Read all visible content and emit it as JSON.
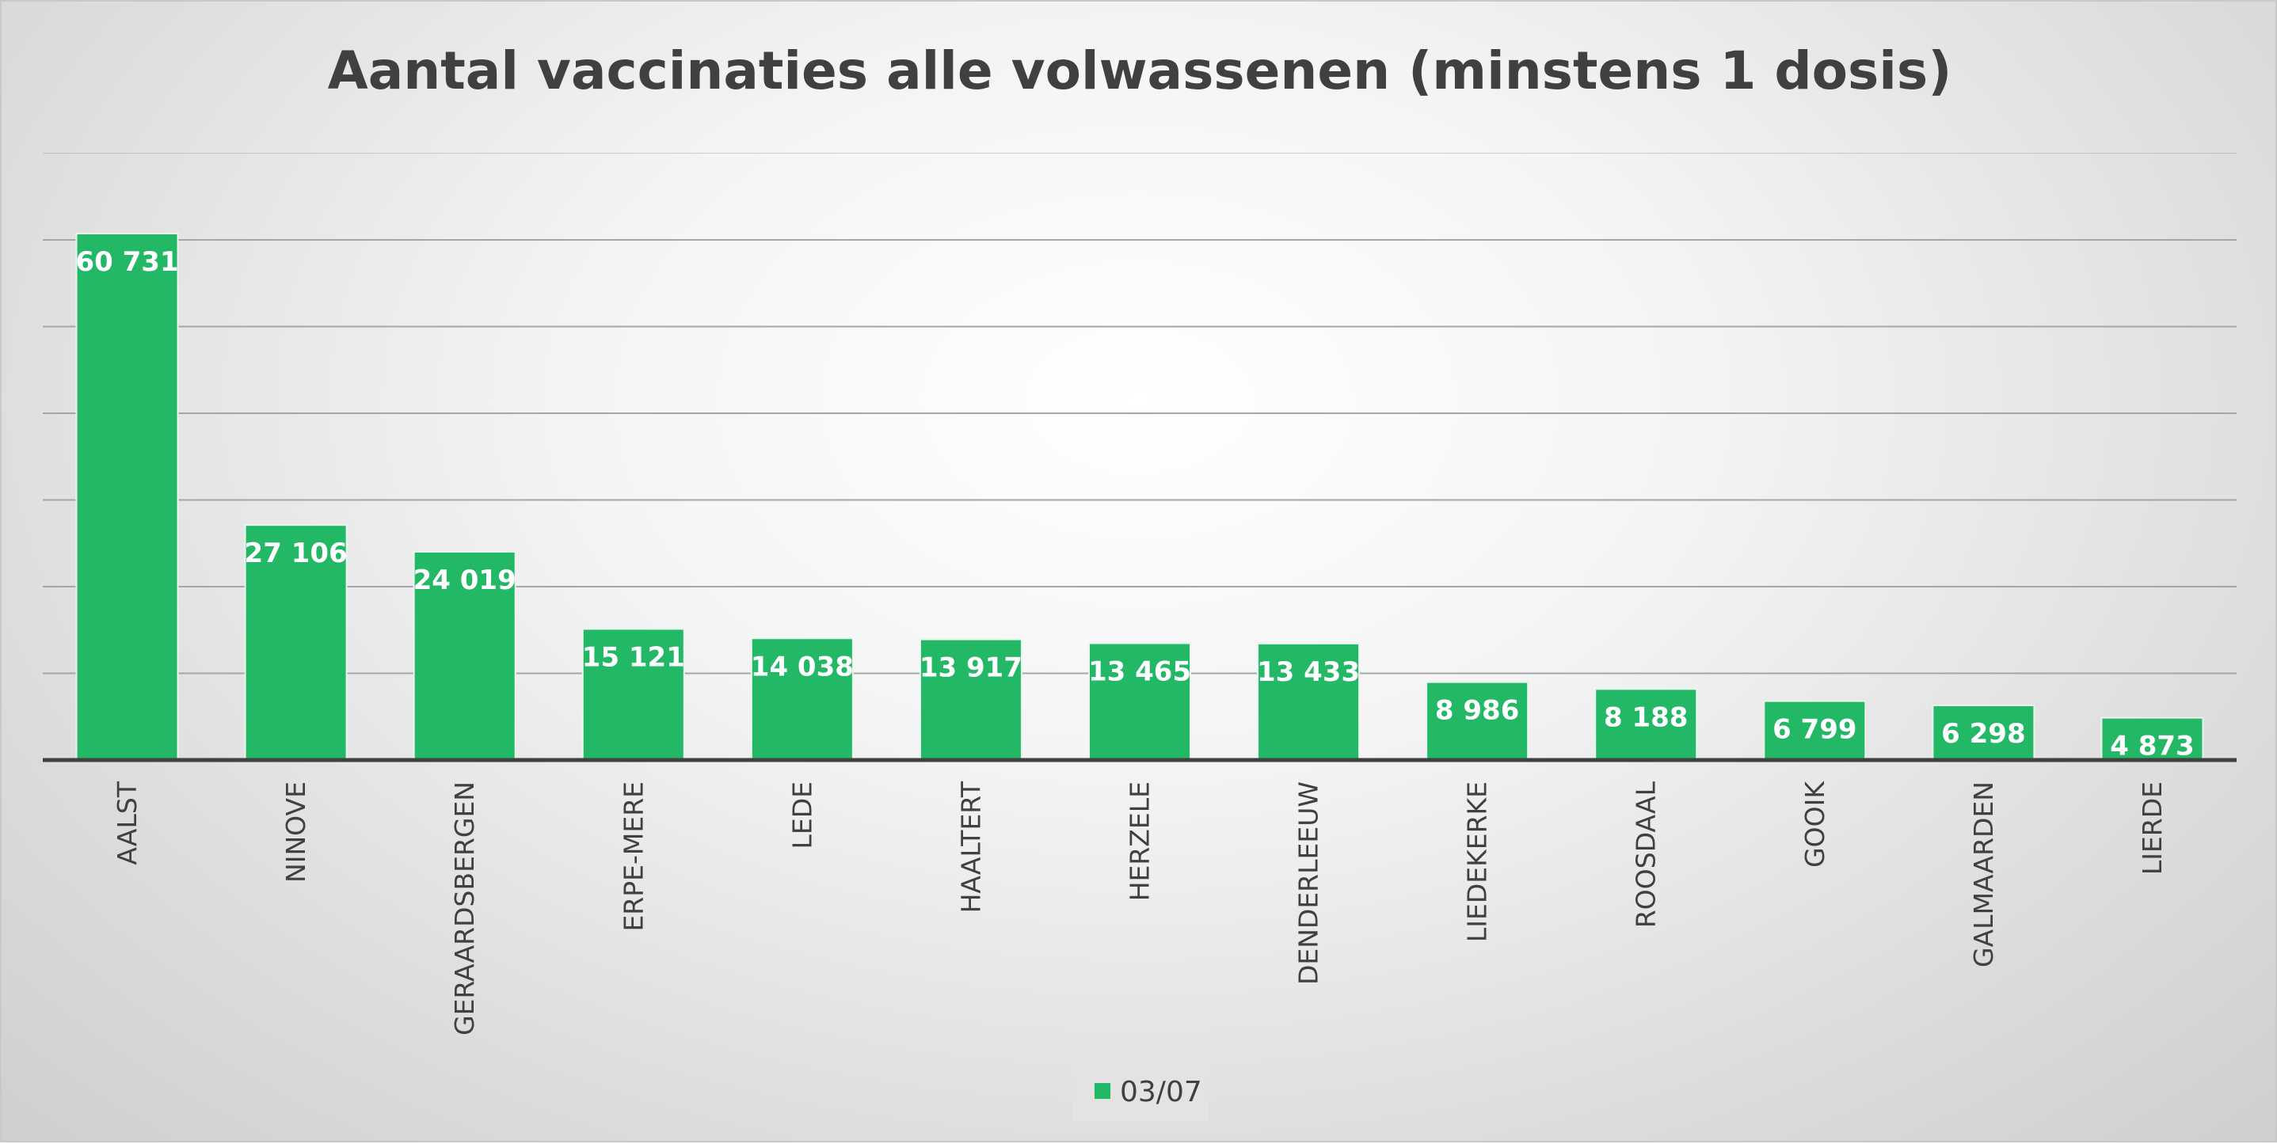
{
  "chart_data": {
    "type": "bar",
    "title": "Aantal vaccinaties alle volwassenen (minstens 1 dosis)",
    "categories": [
      "AALST",
      "NINOVE",
      "GERAARDSBERGEN",
      "ERPE-MERE",
      "LEDE",
      "HAALTERT",
      "HERZELE",
      "DENDERLEEUW",
      "LIEDEKERKE",
      "ROOSDAAL",
      "GOOIK",
      "GALMAARDEN",
      "LIERDE"
    ],
    "series": [
      {
        "name": "03/07",
        "values": [
          60731,
          27106,
          24019,
          15121,
          14038,
          13917,
          13465,
          13433,
          8986,
          8188,
          6799,
          6298,
          4873
        ]
      }
    ],
    "value_labels": [
      "60 731",
      "27 106",
      "24 019",
      "15 121",
      "14 038",
      "13 917",
      "13 465",
      "13 433",
      "8 986",
      "8 188",
      "6 799",
      "6 298",
      "4 873"
    ],
    "ylim": [
      0,
      70000
    ],
    "y_tick_step": 10000,
    "grid": true,
    "legend": "bottom",
    "colors": {
      "bar": "#22b866",
      "bar_border": "#e8f6ee",
      "grid": "#a6a6a6",
      "axis": "#404040"
    }
  }
}
